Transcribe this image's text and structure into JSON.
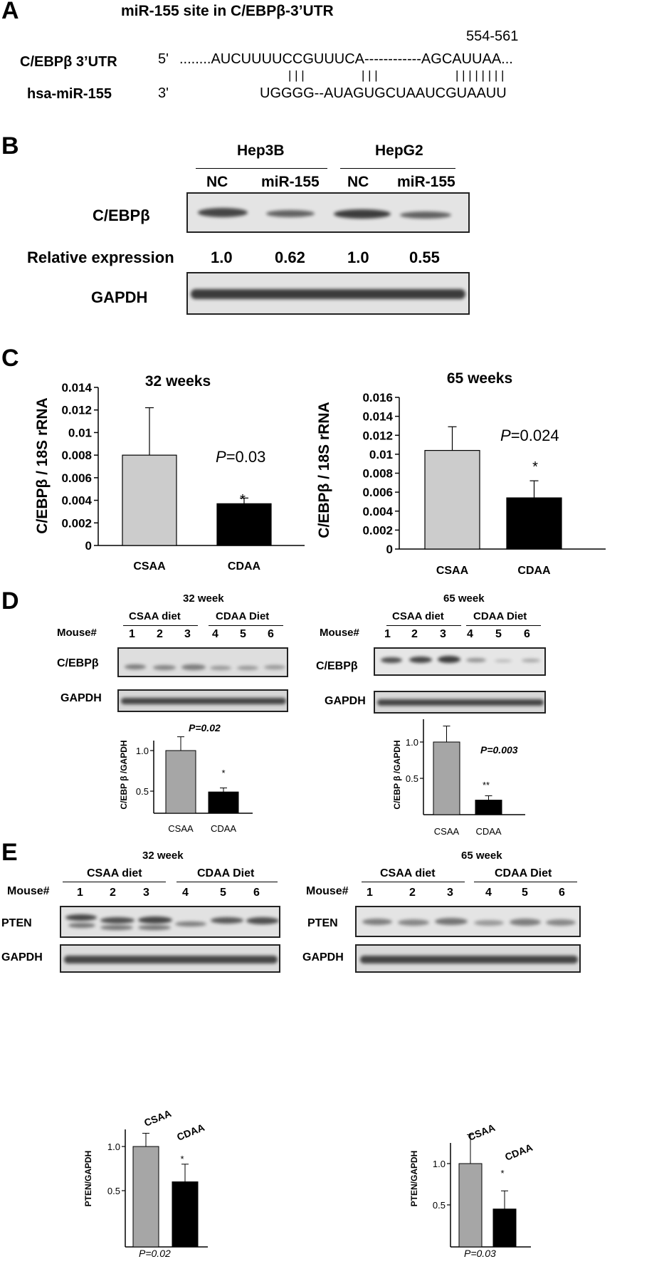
{
  "panelA": {
    "letter": "A",
    "title": "miR-155 site in C/EBPβ-3’UTR",
    "position": "554-561",
    "utr_label": "C/EBPβ 3’UTR",
    "utr_end": "5'",
    "utr_seq": "........AUCUUUUCCGUUUCA------------AGCAUUAA...",
    "mir_label": "hsa-miR-155",
    "mir_end": "3'",
    "mir_seq": "UGGGG--AUAGUGCUAAUCGUAAUU",
    "pairs1": "| | |",
    "pairs2": "| | |",
    "pairs3": "| | | | | | | |"
  },
  "panelB": {
    "letter": "B",
    "groups": [
      "Hep3B",
      "HepG2"
    ],
    "lanes": [
      "NC",
      "miR-155",
      "NC",
      "miR-155"
    ],
    "row1_label": "C/EBPβ",
    "rel_label": "Relative expression",
    "rel_values": [
      "1.0",
      "0.62",
      "1.0",
      "0.55"
    ],
    "row2_label": "GAPDH"
  },
  "panelC": {
    "letter": "C",
    "left_ticks": [
      "0.014",
      "0.012",
      "0.01",
      "0.008",
      "0.006",
      "0.004",
      "0.002",
      "0"
    ],
    "right_ticks": [
      "0.016",
      "0.014",
      "0.012",
      "0.01",
      "0.008",
      "0.006",
      "0.004",
      "0.002",
      "0"
    ],
    "left_p": "0.03",
    "right_p": "0.024",
    "p_prefix": "P",
    "p_eq": "=",
    "star": "*"
  },
  "panelD": {
    "letter": "D",
    "left_title": "32 week",
    "right_title": "65 week",
    "diet1": "CSAA diet",
    "diet2": "CDAA Diet",
    "mouse_label": "Mouse#",
    "mice": [
      "1",
      "2",
      "3",
      "4",
      "5",
      "6"
    ],
    "row1_label": "C/EBPβ",
    "row2_label": "GAPDH",
    "left_p": "P=0.02",
    "right_p": "P=0.003",
    "left_ticks": [
      "1.0",
      "0.5"
    ],
    "right_ticks": [
      "1.0",
      "0.5"
    ],
    "left_star": "*",
    "right_star": "**"
  },
  "panelE": {
    "letter": "E",
    "left_title": "32 week",
    "right_title": "65 week",
    "diet1": "CSAA diet",
    "diet2": "CDAA Diet",
    "mouse_label": "Mouse#",
    "mice": [
      "1",
      "2",
      "3",
      "4",
      "5",
      "6"
    ],
    "row1_label": "PTEN",
    "row2_label": "GAPDH",
    "left_p": "P=0.02",
    "right_p": "P=0.03",
    "left_ticks": [
      "1.0",
      "0.5"
    ],
    "right_ticks": [
      "1.0",
      "0.5"
    ],
    "left_star": "*",
    "right_star": "*"
  },
  "chart_data": [
    {
      "type": "bar",
      "title": "32 weeks",
      "categories": [
        "CSAA",
        "CDAA"
      ],
      "values": [
        0.008,
        0.0037
      ],
      "errors": [
        0.0042,
        0.0005
      ],
      "ylabel": "C/EBPβ / 18S rRNA",
      "ylim": [
        0,
        0.014
      ],
      "colors": [
        "#cccccc",
        "#000000"
      ]
    },
    {
      "type": "bar",
      "title": "65 weeks",
      "categories": [
        "CSAA",
        "CDAA"
      ],
      "values": [
        0.0104,
        0.0054
      ],
      "errors": [
        0.0025,
        0.0018
      ],
      "ylabel": "C/EBPβ / 18S rRNA",
      "ylim": [
        0,
        0.016
      ],
      "colors": [
        "#cccccc",
        "#000000"
      ]
    },
    {
      "type": "bar",
      "categories": [
        "CSAA",
        "CDAA"
      ],
      "values": [
        1.0,
        0.49
      ],
      "errors": [
        0.17,
        0.05
      ],
      "ylabel": "C/EBP β /GAPDH",
      "colors": [
        "#a6a6a6",
        "#000000"
      ]
    },
    {
      "type": "bar",
      "categories": [
        "CSAA",
        "CDAA"
      ],
      "values": [
        1.0,
        0.2
      ],
      "errors": [
        0.22,
        0.06
      ],
      "ylabel": "C/EBP β /GAPDH",
      "colors": [
        "#a6a6a6",
        "#000000"
      ]
    },
    {
      "type": "bar",
      "categories": [
        "CSAA",
        "CDAA"
      ],
      "values": [
        1.0,
        0.6
      ],
      "errors": [
        0.15,
        0.2
      ],
      "ylabel": "PTEN/GAPDH",
      "colors": [
        "#a6a6a6",
        "#000000"
      ]
    },
    {
      "type": "bar",
      "categories": [
        "CSAA",
        "CDAA"
      ],
      "values": [
        1.0,
        0.45
      ],
      "errors": [
        0.35,
        0.22
      ],
      "ylabel": "PTEN/GAPDH",
      "colors": [
        "#a6a6a6",
        "#000000"
      ]
    }
  ]
}
